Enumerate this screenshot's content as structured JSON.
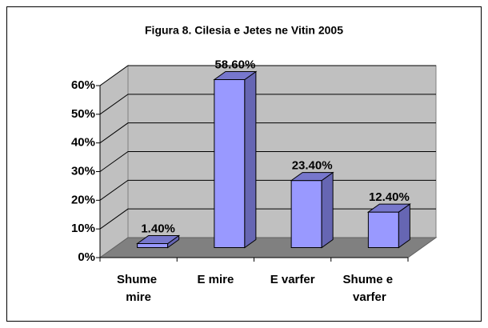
{
  "chart_data": {
    "type": "bar3d",
    "title": "Figura 8. Cilesia e Jetes ne Vitin 2005",
    "categories": [
      "Shume mire",
      "E mire",
      "E varfer",
      "Shume e varfer"
    ],
    "values": [
      1.4,
      58.6,
      23.4,
      12.4
    ],
    "value_labels": [
      "1.40%",
      "58.60%",
      "23.40%",
      "12.40%"
    ],
    "color": "#9999ff",
    "ylim": [
      0,
      60
    ],
    "yticks": [
      {
        "value": 0,
        "label": "0%"
      },
      {
        "value": 10,
        "label": "10%"
      },
      {
        "value": 20,
        "label": "20%"
      },
      {
        "value": 30,
        "label": "30%"
      },
      {
        "value": 40,
        "label": "40%"
      },
      {
        "value": 50,
        "label": "50%"
      },
      {
        "value": 60,
        "label": "60%"
      }
    ],
    "grid": true
  }
}
